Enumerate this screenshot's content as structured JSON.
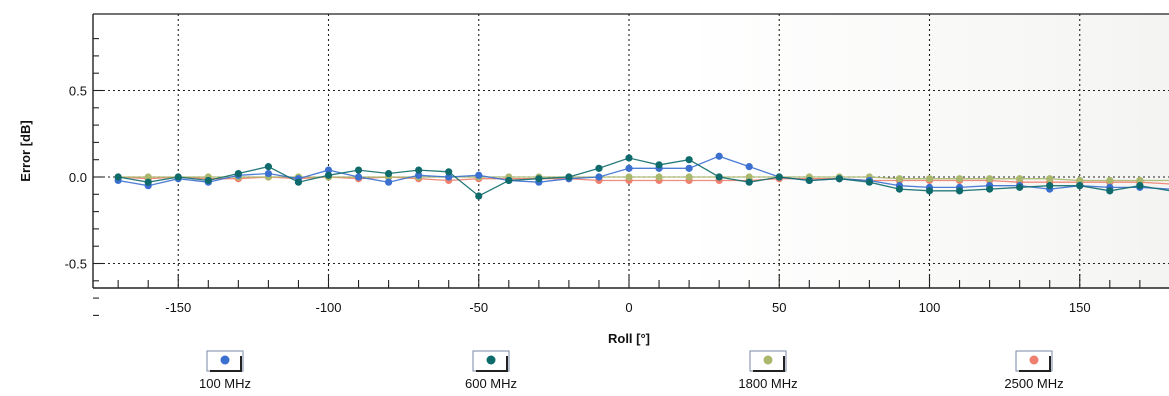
{
  "chart_data": {
    "type": "line",
    "xlabel": "Roll [°]",
    "ylabel": "Error [dB]",
    "xlim": [
      -180,
      180
    ],
    "ylim": [
      -0.8,
      0.8
    ],
    "x_ticks": [
      -150,
      -100,
      -50,
      0,
      50,
      100,
      150
    ],
    "x_tick_labels": [
      "-150",
      "-100",
      "-50",
      "0",
      "50",
      "100",
      "150"
    ],
    "y_ticks": [
      0.5,
      0.0,
      -0.5
    ],
    "y_tick_labels": [
      "0.5",
      "0.0",
      "-0.5"
    ],
    "grid": true,
    "legend_position": "bottom",
    "x": [
      -170,
      -160,
      -150,
      -140,
      -130,
      -120,
      -110,
      -100,
      -90,
      -80,
      -70,
      -60,
      -50,
      -40,
      -30,
      -20,
      -10,
      0,
      10,
      20,
      30,
      40,
      50,
      60,
      70,
      80,
      90,
      100,
      110,
      120,
      130,
      140,
      150,
      160,
      170,
      180
    ],
    "series": [
      {
        "name": "100 MHz",
        "color": "#3b6fd0",
        "values": [
          -0.02,
          -0.05,
          -0.01,
          -0.03,
          0.01,
          0.02,
          -0.01,
          0.04,
          0.0,
          -0.03,
          0.01,
          0.0,
          0.01,
          -0.02,
          -0.03,
          -0.01,
          0.0,
          0.05,
          0.05,
          0.05,
          0.12,
          0.06,
          0.0,
          -0.02,
          -0.01,
          -0.02,
          -0.05,
          -0.06,
          -0.06,
          -0.05,
          -0.05,
          -0.07,
          -0.05,
          -0.06,
          -0.06,
          -0.07
        ]
      },
      {
        "name": "600 MHz",
        "color": "#0f6b6b",
        "values": [
          0.0,
          -0.03,
          0.0,
          -0.02,
          0.02,
          0.06,
          -0.03,
          0.01,
          0.04,
          0.02,
          0.04,
          0.03,
          -0.11,
          -0.02,
          -0.01,
          0.0,
          0.05,
          0.11,
          0.07,
          0.1,
          0.0,
          -0.03,
          0.0,
          -0.02,
          -0.01,
          -0.03,
          -0.07,
          -0.08,
          -0.08,
          -0.07,
          -0.06,
          -0.05,
          -0.05,
          -0.08,
          -0.05,
          -0.08
        ]
      },
      {
        "name": "1800 MHz",
        "color": "#a9b86c",
        "values": [
          0.0,
          0.0,
          0.0,
          0.0,
          0.0,
          0.0,
          0.0,
          0.0,
          0.0,
          0.0,
          0.0,
          0.0,
          0.0,
          0.0,
          0.0,
          0.0,
          0.0,
          0.0,
          0.0,
          0.0,
          0.0,
          0.0,
          0.0,
          0.0,
          0.0,
          0.0,
          -0.01,
          -0.01,
          -0.01,
          -0.01,
          -0.01,
          -0.01,
          -0.02,
          -0.02,
          -0.02,
          -0.02
        ]
      },
      {
        "name": "2500 MHz",
        "color": "#ef7f6e",
        "values": [
          0.0,
          -0.01,
          0.0,
          -0.01,
          -0.01,
          0.0,
          -0.01,
          0.0,
          -0.01,
          0.0,
          -0.01,
          -0.02,
          -0.01,
          -0.01,
          -0.01,
          -0.01,
          -0.02,
          -0.02,
          -0.02,
          -0.02,
          -0.02,
          -0.02,
          -0.01,
          -0.01,
          -0.01,
          -0.02,
          -0.02,
          -0.02,
          -0.02,
          -0.02,
          -0.03,
          -0.03,
          -0.03,
          -0.03,
          -0.03,
          -0.04
        ]
      }
    ]
  }
}
